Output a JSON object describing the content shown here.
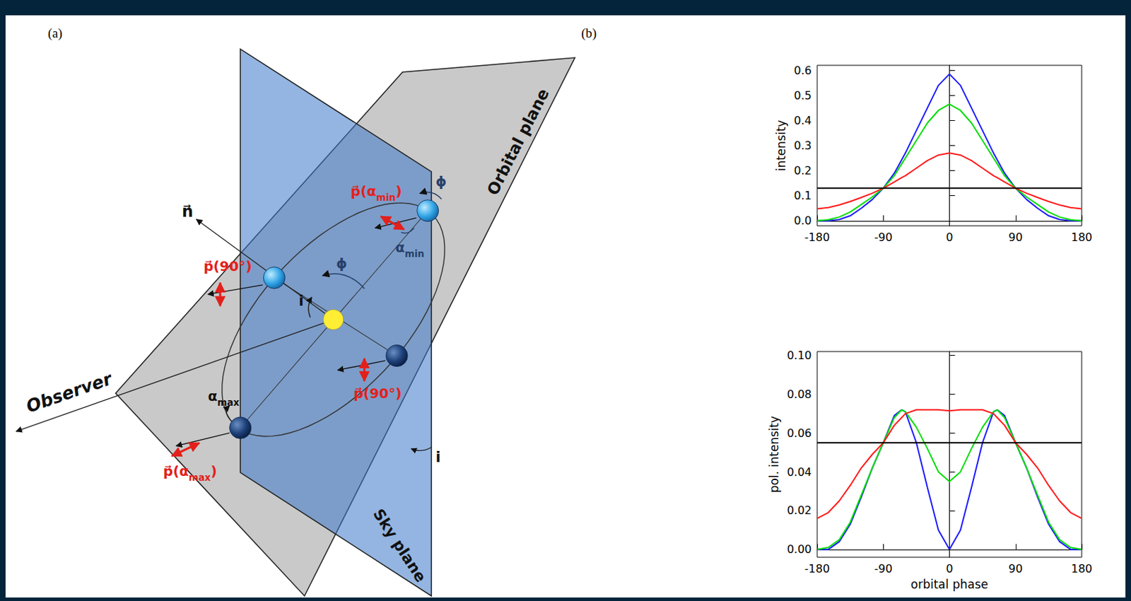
{
  "panel_labels": [
    "(a)",
    "(b)"
  ],
  "diagram": {
    "observer": "Observer",
    "orbital_plane": "Orbital plane",
    "sky_plane": "Sky plane",
    "normal": "n⃗",
    "inclination": [
      "i",
      "i"
    ],
    "phase": [
      "ϕ",
      "ϕ"
    ],
    "p_alpha_min": {
      "text": "p⃗(α",
      "sub": "min",
      "tail": ")"
    },
    "p_90": [
      "p⃗(90°)",
      "p⃗(90°)"
    ],
    "p_alpha_max": {
      "text": "p⃗(α",
      "sub": "max",
      "tail": ")"
    },
    "alpha_min": {
      "text": "α",
      "sub": "min"
    },
    "alpha_max": {
      "text": "α",
      "sub": "max"
    }
  },
  "chart_data": [
    {
      "type": "line",
      "y_label": "intensity",
      "x": [
        -180,
        -165,
        -150,
        -135,
        -120,
        -105,
        -90,
        -75,
        -65,
        -60,
        -45,
        -30,
        -15,
        0,
        15,
        30,
        45,
        60,
        65,
        75,
        90,
        105,
        120,
        135,
        150,
        165,
        180
      ],
      "xlim": [
        -180,
        180
      ],
      "xticks": [
        -180,
        -90,
        0,
        90,
        180
      ],
      "ylim": [
        -0.02,
        0.62
      ],
      "yticks": [
        {
          "value": 0,
          "label": "0.0"
        },
        {
          "value": 0.1,
          "label": "0.1"
        },
        {
          "value": 0.2,
          "label": "0.2"
        },
        {
          "value": 0.3,
          "label": "0.3"
        },
        {
          "value": 0.4,
          "label": "0.4"
        },
        {
          "value": 0.5,
          "label": "0.5"
        },
        {
          "value": 0.6,
          "label": "0.6"
        }
      ],
      "grid": false,
      "series": [
        {
          "color": "#1a1aff",
          "values": [
            0,
            0,
            0.005,
            0.02,
            0.05,
            0.085,
            0.13,
            0.19,
            0.243,
            0.27,
            0.36,
            0.45,
            0.54,
            0.585,
            0.54,
            0.45,
            0.36,
            0.27,
            0.243,
            0.19,
            0.13,
            0.085,
            0.05,
            0.02,
            0.005,
            0,
            0
          ]
        },
        {
          "color": "#00dd00",
          "values": [
            0,
            0.004,
            0.015,
            0.035,
            0.065,
            0.095,
            0.13,
            0.18,
            0.227,
            0.25,
            0.32,
            0.39,
            0.44,
            0.465,
            0.44,
            0.39,
            0.32,
            0.25,
            0.227,
            0.18,
            0.13,
            0.095,
            0.065,
            0.035,
            0.015,
            0.004,
            0
          ]
        },
        {
          "color": "#ff1a1a",
          "values": [
            0.048,
            0.053,
            0.063,
            0.077,
            0.093,
            0.11,
            0.13,
            0.155,
            0.172,
            0.18,
            0.21,
            0.24,
            0.262,
            0.27,
            0.262,
            0.24,
            0.21,
            0.18,
            0.172,
            0.155,
            0.13,
            0.11,
            0.093,
            0.077,
            0.063,
            0.053,
            0.048
          ]
        },
        {
          "color": "#000000",
          "values": [
            0.13,
            0.13,
            0.13,
            0.13,
            0.13,
            0.13,
            0.13,
            0.13,
            0.13,
            0.13,
            0.13,
            0.13,
            0.13,
            0.13,
            0.13,
            0.13,
            0.13,
            0.13,
            0.13,
            0.13,
            0.13,
            0.13,
            0.13,
            0.13,
            0.13,
            0.13,
            0.13
          ]
        }
      ]
    },
    {
      "type": "line",
      "x_label": "orbital phase",
      "y_label": "pol. intensity",
      "x": [
        -180,
        -165,
        -150,
        -135,
        -120,
        -105,
        -90,
        -75,
        -65,
        -60,
        -45,
        -30,
        -15,
        0,
        15,
        30,
        45,
        60,
        65,
        75,
        90,
        105,
        120,
        135,
        150,
        165,
        180
      ],
      "xlim": [
        -180,
        180
      ],
      "xticks": [
        -180,
        -90,
        0,
        90,
        180
      ],
      "ylim": [
        -0.004,
        0.102
      ],
      "yticks": [
        {
          "value": 0,
          "label": "0.00"
        },
        {
          "value": 0.02,
          "label": "0.02"
        },
        {
          "value": 0.04,
          "label": "0.04"
        },
        {
          "value": 0.06,
          "label": "0.06"
        },
        {
          "value": 0.08,
          "label": "0.08"
        },
        {
          "value": 0.1,
          "label": "0.10"
        }
      ],
      "grid": false,
      "series": [
        {
          "color": "#1a1aff",
          "values": [
            0,
            0,
            0.004,
            0.013,
            0.027,
            0.042,
            0.055,
            0.069,
            0.072,
            0.071,
            0.055,
            0.032,
            0.01,
            0,
            0.01,
            0.032,
            0.055,
            0.071,
            0.072,
            0.069,
            0.055,
            0.042,
            0.027,
            0.013,
            0.004,
            0,
            0
          ]
        },
        {
          "color": "#00dd00",
          "values": [
            0,
            0.001,
            0.005,
            0.014,
            0.028,
            0.042,
            0.055,
            0.068,
            0.072,
            0.071,
            0.063,
            0.052,
            0.04,
            0.035,
            0.04,
            0.052,
            0.063,
            0.071,
            0.072,
            0.068,
            0.055,
            0.042,
            0.028,
            0.014,
            0.005,
            0.001,
            0
          ]
        },
        {
          "color": "#ff1a1a",
          "values": [
            0.016,
            0.019,
            0.025,
            0.033,
            0.042,
            0.049,
            0.055,
            0.064,
            0.068,
            0.07,
            0.072,
            0.072,
            0.072,
            0.0715,
            0.072,
            0.072,
            0.072,
            0.07,
            0.068,
            0.064,
            0.055,
            0.049,
            0.042,
            0.033,
            0.025,
            0.019,
            0.016
          ]
        },
        {
          "color": "#000000",
          "values": [
            0.055,
            0.055,
            0.055,
            0.055,
            0.055,
            0.055,
            0.055,
            0.055,
            0.055,
            0.055,
            0.055,
            0.055,
            0.055,
            0.055,
            0.055,
            0.055,
            0.055,
            0.055,
            0.055,
            0.055,
            0.055,
            0.055,
            0.055,
            0.055,
            0.055,
            0.055,
            0.055
          ]
        }
      ]
    }
  ]
}
